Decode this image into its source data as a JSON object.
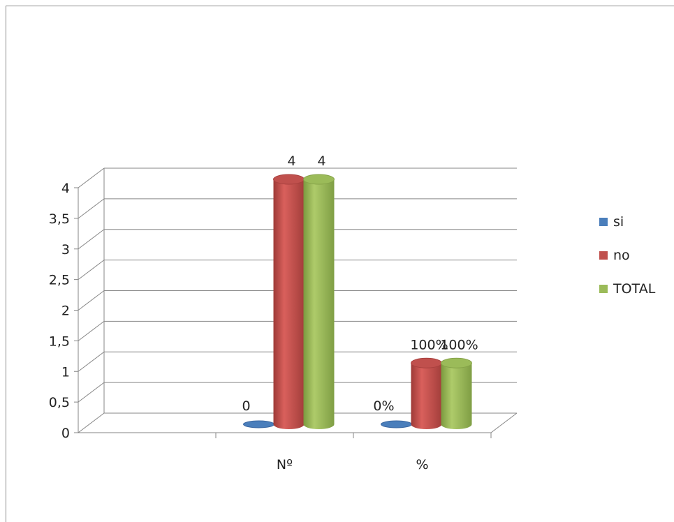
{
  "chart_data": {
    "type": "bar",
    "three_d": true,
    "bar_shape": "cylinder",
    "categories": [
      "Nº",
      "%"
    ],
    "series": [
      {
        "name": "si",
        "color": "#4a7ebb",
        "values": [
          0,
          0
        ],
        "labels": [
          "0",
          "0%"
        ]
      },
      {
        "name": "no",
        "color": "#c0504d",
        "values": [
          4,
          1
        ],
        "labels": [
          "4",
          "100%"
        ]
      },
      {
        "name": "TOTAL",
        "color": "#9bbb59",
        "values": [
          4,
          1
        ],
        "labels": [
          "4",
          "100%"
        ]
      }
    ],
    "y_ticks": [
      "0",
      "0,5",
      "1",
      "1,5",
      "2",
      "2,5",
      "3",
      "3,5",
      "4"
    ],
    "ylim": [
      0,
      4
    ],
    "grid": true,
    "legend": "right"
  }
}
